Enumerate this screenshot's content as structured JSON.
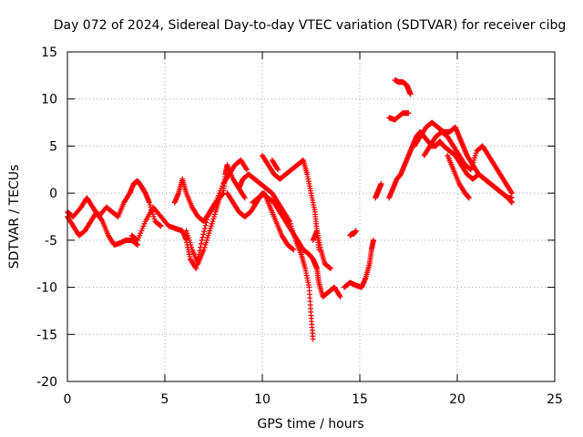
{
  "chart_data": {
    "type": "scatter",
    "title": "Day 072 of 2024, Sidereal Day-to-day VTEC variation (SDTVAR) for receiver cibg",
    "xlabel": "GPS time / hours",
    "ylabel": "SDTVAR / TECUs",
    "xlim": [
      0,
      25
    ],
    "ylim": [
      -20,
      15
    ],
    "x_ticks": [
      0,
      5,
      10,
      15,
      20,
      25
    ],
    "y_ticks": [
      -20,
      -15,
      -10,
      -5,
      0,
      5,
      10,
      15
    ],
    "x_tick_labels": [
      "0",
      "5",
      "10",
      "15",
      "20",
      "25"
    ],
    "y_tick_labels": [
      "-20",
      "-15",
      "-10",
      "-5",
      "0",
      "5",
      "10",
      "15"
    ],
    "grid": true,
    "marker": "+",
    "marker_color": "#ff0000",
    "series": [
      {
        "name": "track-1",
        "x": [
          0.0,
          0.3,
          0.7,
          1.0,
          1.3,
          1.6,
          2.0,
          2.3,
          2.6,
          2.9,
          3.2,
          3.4,
          3.6,
          3.8,
          4.0,
          4.2,
          4.5,
          4.8
        ],
        "y": [
          -2.0,
          -2.5,
          -1.5,
          -0.5,
          -1.5,
          -2.5,
          -1.5,
          -2.0,
          -2.5,
          -1.0,
          0.0,
          1.0,
          1.3,
          0.7,
          0.0,
          -1.0,
          -3.0,
          -3.5
        ]
      },
      {
        "name": "track-2",
        "x": [
          0.0,
          0.3,
          0.6,
          0.9,
          1.2,
          1.5,
          1.8,
          2.1,
          2.4,
          2.7,
          3.0,
          3.3,
          3.6
        ],
        "y": [
          -2.5,
          -3.5,
          -4.5,
          -4.0,
          -3.0,
          -2.0,
          -3.0,
          -4.5,
          -5.5,
          -5.3,
          -5.0,
          -5.0,
          -5.5
        ]
      },
      {
        "name": "track-3",
        "x": [
          3.3,
          3.6,
          4.0,
          4.4,
          4.8,
          5.2,
          5.6,
          5.9,
          6.1,
          6.3,
          6.6,
          6.9,
          7.2,
          7.6,
          8.0
        ],
        "y": [
          -4.5,
          -5.0,
          -3.0,
          -1.5,
          -2.5,
          -3.5,
          -3.8,
          -4.0,
          -5.0,
          -7.0,
          -8.0,
          -5.0,
          -2.5,
          -1.0,
          0.0
        ]
      },
      {
        "name": "track-4",
        "x": [
          5.5,
          5.7,
          5.9,
          6.1,
          6.4,
          6.7,
          7.0,
          7.3,
          7.6,
          8.0,
          8.3,
          8.6,
          8.9,
          9.2
        ],
        "y": [
          -1.0,
          0.0,
          1.5,
          0.0,
          -1.5,
          -2.5,
          -3.0,
          -2.0,
          -1.0,
          1.0,
          2.0,
          3.0,
          3.5,
          2.5
        ]
      },
      {
        "name": "track-5",
        "x": [
          6.1,
          6.4,
          6.7,
          7.0,
          7.3,
          7.6,
          7.8,
          8.0,
          8.1,
          8.2,
          8.5,
          8.8,
          9.1
        ],
        "y": [
          -4.0,
          -6.0,
          -7.5,
          -6.0,
          -4.0,
          -2.0,
          -0.5,
          0.0,
          2.0,
          3.0,
          1.5,
          0.5,
          -0.5
        ]
      },
      {
        "name": "track-6",
        "x": [
          8.2,
          8.5,
          8.8,
          9.1,
          9.4,
          9.7,
          10.0,
          10.3,
          10.6,
          10.9,
          11.2,
          11.5,
          11.8,
          12.1,
          12.4,
          12.6,
          12.7,
          12.8,
          12.9,
          13.1,
          13.4,
          13.7,
          14.0
        ],
        "y": [
          0.0,
          -1.0,
          -2.0,
          -2.5,
          -2.0,
          -1.0,
          0.0,
          -0.5,
          -1.0,
          -2.0,
          -3.0,
          -4.0,
          -5.0,
          -6.0,
          -6.5,
          -7.0,
          -7.5,
          -8.0,
          -9.5,
          -11.0,
          -10.5,
          -10.0,
          -11.0
        ]
      },
      {
        "name": "track-7",
        "x": [
          8.8,
          9.0,
          9.3,
          9.6,
          9.9,
          10.2,
          10.5,
          10.8,
          11.1,
          11.4,
          11.7,
          12.0,
          12.2,
          12.4,
          12.5,
          12.6
        ],
        "y": [
          0.5,
          1.5,
          2.0,
          1.5,
          1.0,
          0.5,
          0.0,
          -1.0,
          -2.0,
          -3.0,
          -5.0,
          -6.5,
          -8.0,
          -10.0,
          -13.0,
          -15.5
        ]
      },
      {
        "name": "track-8",
        "x": [
          10.0,
          10.3,
          10.6,
          10.9,
          11.2,
          11.5,
          11.8,
          12.1,
          12.3,
          12.5,
          12.7,
          12.8,
          12.9
        ],
        "y": [
          4.0,
          3.0,
          2.0,
          1.5,
          2.0,
          2.5,
          3.0,
          3.5,
          2.0,
          0.0,
          -2.0,
          -4.0,
          -6.0
        ]
      },
      {
        "name": "track-9",
        "x": [
          9.5,
          9.8,
          10.1,
          10.4,
          10.7,
          11.0,
          11.3,
          11.6
        ],
        "y": [
          -1.0,
          -0.5,
          0.0,
          -1.5,
          -3.0,
          -4.5,
          -5.5,
          -6.0
        ]
      },
      {
        "name": "track-10",
        "x": [
          12.6,
          12.8,
          13.0,
          13.2,
          13.5
        ],
        "y": [
          -5.0,
          -4.0,
          -6.0,
          -7.5,
          -8.0
        ]
      },
      {
        "name": "track-11",
        "x": [
          14.2,
          14.5,
          14.8,
          15.1,
          15.3,
          15.5,
          15.6,
          15.7
        ],
        "y": [
          -10.0,
          -9.5,
          -9.8,
          -10.0,
          -9.0,
          -7.5,
          -6.0,
          -5.0
        ]
      },
      {
        "name": "track-12",
        "x": [
          15.8,
          15.9,
          16.0,
          16.1
        ],
        "y": [
          -0.5,
          0.0,
          0.5,
          1.0
        ]
      },
      {
        "name": "track-13",
        "x": [
          16.5,
          16.7,
          16.9,
          17.1,
          17.3,
          17.5,
          17.7,
          17.9,
          18.1,
          18.3,
          18.5,
          18.7,
          18.9,
          19.1,
          19.3,
          19.6,
          19.9,
          20.2,
          20.5,
          20.8,
          21.1,
          21.4,
          21.7,
          22.0,
          22.3,
          22.6,
          22.8
        ],
        "y": [
          -0.5,
          0.5,
          1.5,
          2.0,
          3.0,
          4.0,
          5.0,
          6.0,
          6.5,
          6.0,
          5.5,
          5.0,
          5.0,
          5.5,
          5.0,
          4.5,
          4.0,
          3.0,
          2.0,
          1.5,
          2.0,
          1.5,
          1.0,
          0.5,
          0.0,
          -0.5,
          -0.5
        ]
      },
      {
        "name": "track-14",
        "x": [
          17.8,
          18.1,
          18.4,
          18.7,
          19.0,
          19.3,
          19.6,
          19.9,
          20.1,
          20.3,
          20.5,
          20.8,
          21.1,
          21.4,
          21.7,
          22.0,
          22.3,
          22.6,
          22.8
        ],
        "y": [
          5.0,
          6.0,
          7.0,
          7.5,
          7.0,
          6.5,
          6.5,
          7.0,
          6.0,
          5.0,
          4.0,
          3.0,
          2.0,
          1.5,
          1.0,
          0.5,
          0.0,
          -0.5,
          -1.0
        ]
      },
      {
        "name": "track-15",
        "x": [
          18.3,
          18.6,
          18.9,
          19.2,
          19.5,
          19.8,
          20.1,
          20.4,
          20.7,
          21.0,
          21.3,
          21.6,
          21.9,
          22.2,
          22.5,
          22.8
        ],
        "y": [
          4.0,
          5.0,
          6.0,
          6.5,
          6.0,
          5.0,
          4.0,
          3.0,
          2.5,
          4.5,
          5.0,
          4.0,
          3.0,
          2.0,
          1.0,
          0.0
        ]
      },
      {
        "name": "track-16",
        "x": [
          19.5,
          19.8,
          20.1,
          20.4,
          20.6
        ],
        "y": [
          4.0,
          2.5,
          1.0,
          0.0,
          -0.5
        ]
      },
      {
        "name": "track-17",
        "x": [
          16.8,
          17.0,
          17.2,
          17.4,
          17.5,
          17.6
        ],
        "y": [
          12.0,
          11.8,
          11.8,
          11.5,
          11.0,
          10.5
        ]
      },
      {
        "name": "track-18",
        "x": [
          16.5,
          16.8,
          17.2,
          17.5
        ],
        "y": [
          8.0,
          7.8,
          8.5,
          8.5
        ]
      },
      {
        "name": "track-19",
        "x": [
          14.5,
          14.6,
          14.7,
          14.8
        ],
        "y": [
          -4.5,
          -4.3,
          -4.3,
          -4.0
        ]
      },
      {
        "name": "track-20",
        "x": [
          10.5,
          10.8
        ],
        "y": [
          3.5,
          2.5
        ]
      }
    ]
  }
}
